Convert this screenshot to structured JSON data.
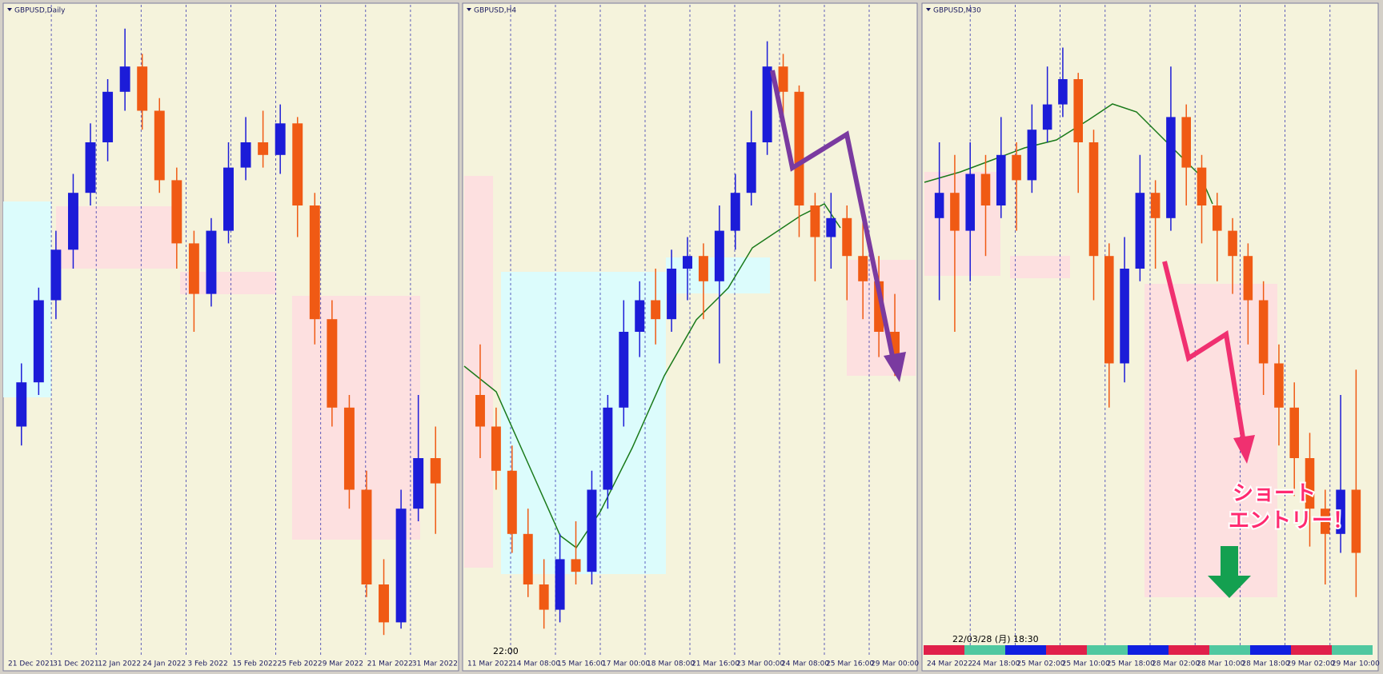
{
  "panels": [
    {
      "title": "GBPUSD,Daily",
      "ylim": [
        0,
        100
      ],
      "xlabels": [
        "21 Dec 2021",
        "31 Dec 2021",
        "12 Jan 2022",
        "24 Jan 2022",
        "3 Feb 2022",
        "15 Feb 2022",
        "25 Feb 2022",
        "9 Mar 2022",
        "21 Mar 2022",
        "31 Mar 2022"
      ],
      "candles": [
        [
          35,
          45,
          32,
          42
        ],
        [
          42,
          57,
          40,
          55
        ],
        [
          55,
          66,
          52,
          63
        ],
        [
          63,
          75,
          60,
          72
        ],
        [
          72,
          83,
          70,
          80
        ],
        [
          80,
          90,
          77,
          88
        ],
        [
          88,
          98,
          85,
          92
        ],
        [
          92,
          94,
          82,
          85
        ],
        [
          85,
          87,
          72,
          74
        ],
        [
          74,
          76,
          60,
          64
        ],
        [
          64,
          66,
          50,
          56
        ],
        [
          56,
          68,
          54,
          66
        ],
        [
          66,
          80,
          64,
          76
        ],
        [
          76,
          84,
          74,
          80
        ],
        [
          80,
          85,
          76,
          78
        ],
        [
          78,
          86,
          75,
          83
        ],
        [
          83,
          84,
          65,
          70
        ],
        [
          70,
          72,
          48,
          52
        ],
        [
          52,
          55,
          35,
          38
        ],
        [
          38,
          40,
          22,
          25
        ],
        [
          25,
          28,
          8,
          10
        ],
        [
          10,
          14,
          2,
          4
        ],
        [
          4,
          25,
          3,
          22
        ],
        [
          22,
          40,
          20,
          30
        ],
        [
          30,
          35,
          18,
          26
        ]
      ]
    },
    {
      "title": "GBPUSD,H4",
      "ylim": [
        0,
        100
      ],
      "cursor_label": "22:00",
      "xlabels": [
        "11 Mar 2022",
        "14 Mar 08:00",
        "15 Mar 16:00",
        "17 Mar 00:00",
        "18 Mar 08:00",
        "21 Mar 16:00",
        "23 Mar 00:00",
        "24 Mar 08:00",
        "25 Mar 16:00",
        "29 Mar 00:00"
      ],
      "candles": [
        [
          40,
          48,
          30,
          35
        ],
        [
          35,
          38,
          25,
          28
        ],
        [
          28,
          32,
          15,
          18
        ],
        [
          18,
          22,
          8,
          10
        ],
        [
          10,
          14,
          3,
          6
        ],
        [
          6,
          18,
          4,
          14
        ],
        [
          14,
          20,
          10,
          12
        ],
        [
          12,
          28,
          10,
          25
        ],
        [
          25,
          40,
          22,
          38
        ],
        [
          38,
          55,
          35,
          50
        ],
        [
          50,
          58,
          46,
          55
        ],
        [
          55,
          60,
          48,
          52
        ],
        [
          52,
          63,
          50,
          60
        ],
        [
          60,
          65,
          55,
          62
        ],
        [
          62,
          64,
          52,
          58
        ],
        [
          58,
          70,
          45,
          66
        ],
        [
          66,
          75,
          63,
          72
        ],
        [
          72,
          85,
          70,
          80
        ],
        [
          80,
          96,
          78,
          92
        ],
        [
          92,
          94,
          82,
          88
        ],
        [
          88,
          89,
          65,
          70
        ],
        [
          70,
          72,
          58,
          65
        ],
        [
          65,
          72,
          60,
          68
        ],
        [
          68,
          70,
          55,
          62
        ],
        [
          62,
          68,
          52,
          58
        ],
        [
          58,
          62,
          46,
          50
        ],
        [
          50,
          56,
          43,
          45
        ]
      ]
    },
    {
      "title": "GBPUSD,M30",
      "ylim": [
        0,
        100
      ],
      "cursor_label": "22/03/28 (月) 18:30",
      "xlabels": [
        "24 Mar 2022",
        "24 Mar 18:00",
        "25 Mar 02:00",
        "25 Mar 10:00",
        "25 Mar 18:00",
        "28 Mar 02:00",
        "28 Mar 10:00",
        "28 Mar 18:00",
        "29 Mar 02:00",
        "29 Mar 10:00"
      ],
      "candles": [
        [
          68,
          80,
          55,
          72
        ],
        [
          72,
          78,
          50,
          66
        ],
        [
          66,
          80,
          58,
          75
        ],
        [
          75,
          78,
          62,
          70
        ],
        [
          70,
          84,
          68,
          78
        ],
        [
          78,
          80,
          66,
          74
        ],
        [
          74,
          86,
          72,
          82
        ],
        [
          82,
          92,
          80,
          86
        ],
        [
          86,
          95,
          84,
          90
        ],
        [
          90,
          91,
          72,
          80
        ],
        [
          80,
          82,
          55,
          62
        ],
        [
          62,
          64,
          38,
          45
        ],
        [
          45,
          65,
          42,
          60
        ],
        [
          60,
          78,
          58,
          72
        ],
        [
          72,
          74,
          60,
          68
        ],
        [
          68,
          92,
          66,
          84
        ],
        [
          84,
          86,
          70,
          76
        ],
        [
          76,
          78,
          64,
          70
        ],
        [
          70,
          72,
          58,
          66
        ],
        [
          66,
          68,
          56,
          62
        ],
        [
          62,
          64,
          48,
          55
        ],
        [
          55,
          58,
          40,
          45
        ],
        [
          45,
          48,
          32,
          38
        ],
        [
          38,
          42,
          24,
          30
        ],
        [
          30,
          34,
          16,
          22
        ],
        [
          22,
          25,
          10,
          18
        ],
        [
          18,
          40,
          15,
          25
        ],
        [
          25,
          44,
          8,
          15
        ]
      ]
    }
  ],
  "annotation": [
    "ショート",
    "エントリー！"
  ]
}
